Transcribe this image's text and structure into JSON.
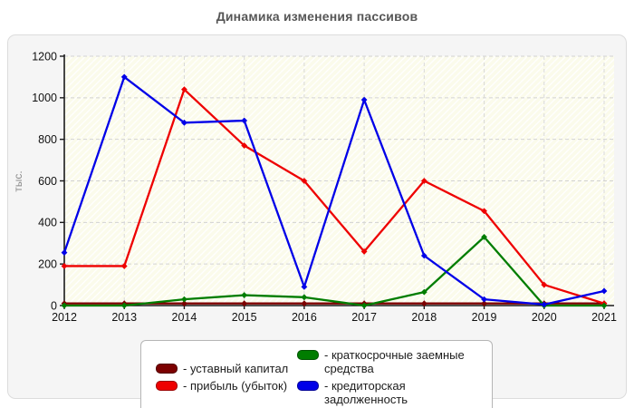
{
  "title": "Динамика изменения пассивов",
  "chart_data": {
    "type": "line",
    "title": "Динамика изменения пассивов",
    "xlabel": "",
    "ylabel": "тыс.",
    "categories": [
      "2012",
      "2013",
      "2014",
      "2015",
      "2016",
      "2017",
      "2018",
      "2019",
      "2020",
      "2021"
    ],
    "ylim": [
      0,
      1200
    ],
    "yticks": [
      0,
      200,
      400,
      600,
      800,
      1000,
      1200
    ],
    "grid": true,
    "legend_position": "bottom",
    "series": [
      {
        "name": "уставный капитал",
        "color": "#7c0101",
        "values": [
          10,
          10,
          10,
          10,
          10,
          10,
          10,
          10,
          10,
          10
        ]
      },
      {
        "name": "прибыль (убыток)",
        "color": "#ee0000",
        "values": [
          190,
          190,
          1040,
          770,
          600,
          260,
          600,
          455,
          100,
          10
        ]
      },
      {
        "name": "краткосрочные заемные средства",
        "color": "#007d00",
        "values": [
          0,
          0,
          30,
          50,
          40,
          0,
          65,
          330,
          0,
          0
        ]
      },
      {
        "name": "кредиторская задолженность",
        "color": "#0000e8",
        "values": [
          255,
          1100,
          880,
          890,
          90,
          990,
          240,
          30,
          5,
          70
        ]
      }
    ]
  },
  "legend": {
    "col1": [
      {
        "label": "- уставный капитал",
        "color": "#7c0101"
      },
      {
        "label": "- прибыль (убыток)",
        "color": "#ee0000"
      }
    ],
    "col2": [
      {
        "label": "- краткосрочные заемные средства",
        "color": "#007d00"
      },
      {
        "label": "- кредиторская задолженность",
        "color": "#0000e8"
      }
    ]
  }
}
